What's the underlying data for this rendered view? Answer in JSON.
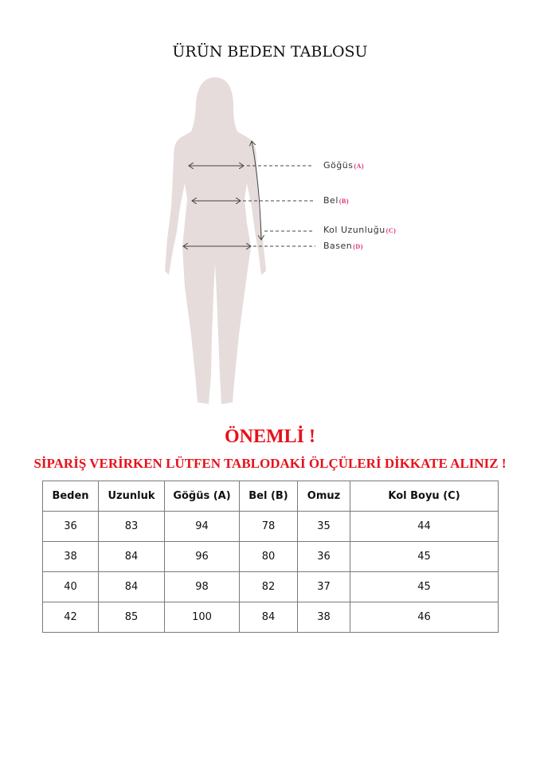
{
  "title": "ÜRÜN BEDEN TABLOSU",
  "figure": {
    "labels": [
      {
        "name": "Göğüs",
        "tag": "(A)"
      },
      {
        "name": "Bel",
        "tag": "(B)"
      },
      {
        "name": "Kol Uzunluğu",
        "tag": "(C)"
      },
      {
        "name": "Basen",
        "tag": "(D)"
      }
    ],
    "silhouette_color": "#e6dcdc",
    "tag_color": "#e0287a"
  },
  "notice": {
    "heading": "ÖNEMLİ !",
    "message": "SİPARİŞ VERİRKEN LÜTFEN TABLODAKİ ÖLÇÜLERİ DİKKATE ALINIZ !",
    "color": "#e8101a"
  },
  "table": {
    "headers": [
      "Beden",
      "Uzunluk",
      "Göğüs (A)",
      "Bel (B)",
      "Omuz",
      "Kol Boyu (C)"
    ],
    "rows": [
      [
        "36",
        "83",
        "94",
        "78",
        "35",
        "44"
      ],
      [
        "38",
        "84",
        "96",
        "80",
        "36",
        "45"
      ],
      [
        "40",
        "84",
        "98",
        "82",
        "37",
        "45"
      ],
      [
        "42",
        "85",
        "100",
        "84",
        "38",
        "46"
      ]
    ]
  }
}
